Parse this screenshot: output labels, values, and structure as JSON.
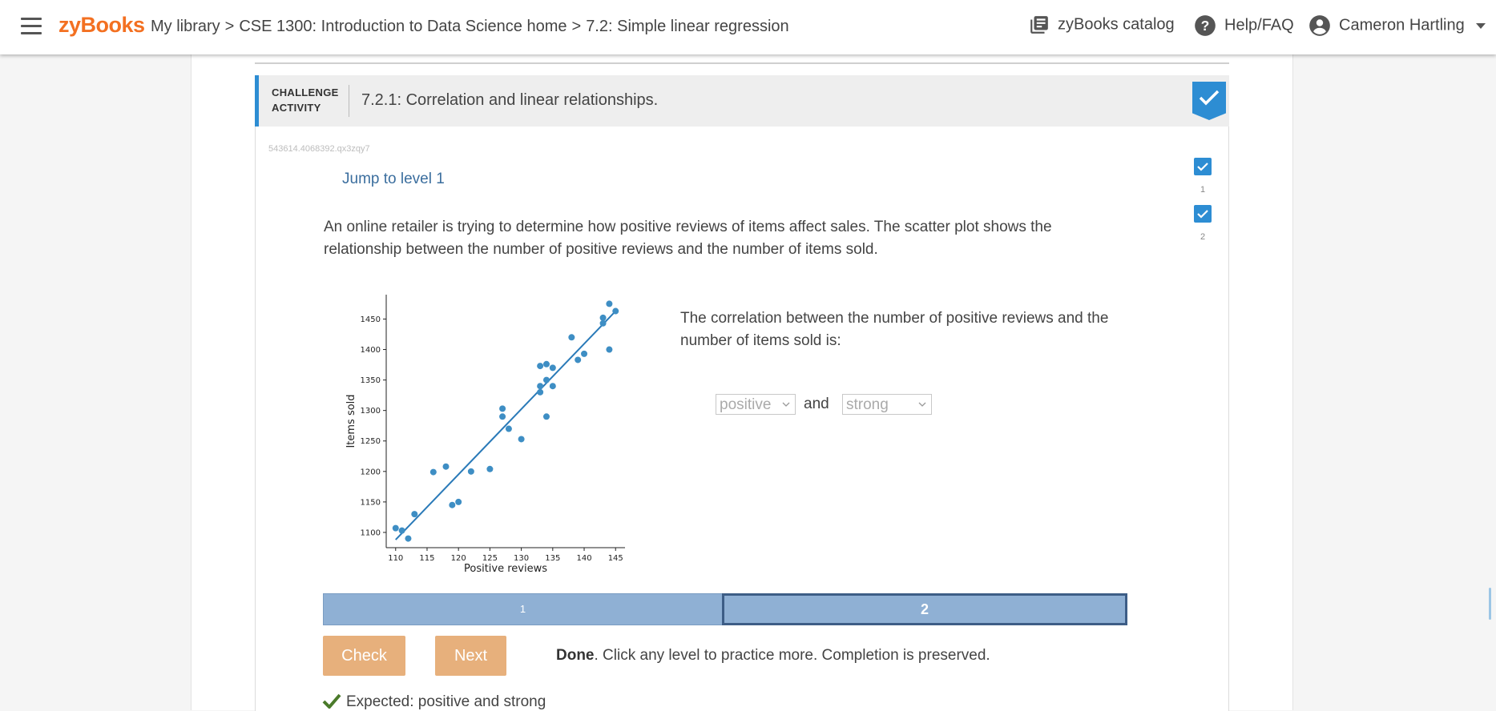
{
  "header": {
    "logo": "zyBooks",
    "breadcrumbs": [
      {
        "label": "My library"
      },
      {
        "label": "CSE 1300: Introduction to Data Science home"
      },
      {
        "label": "7.2: Simple linear regression"
      }
    ],
    "separator": ">",
    "catalog_label": "zyBooks catalog",
    "help_label": "Help/FAQ",
    "user_name": "Cameron Hartling"
  },
  "activity": {
    "type_line1": "CHALLENGE",
    "type_line2": "ACTIVITY",
    "title": "7.2.1: Correlation and linear relationships.",
    "id": "543614.4068392.qx3zqy7",
    "jump_label": "Jump to level 1",
    "levels": [
      {
        "number": "1",
        "completed": true
      },
      {
        "number": "2",
        "completed": true
      }
    ],
    "prompt": "An online retailer is trying to determine how positive reviews of items affect sales. The scatter plot shows the relationship between the number of positive reviews and the number of items sold.",
    "question": "The correlation between the number of positive reviews and the number of items sold is:",
    "select1_value": "positive",
    "and_label": "and",
    "select2_value": "strong",
    "level_bar": [
      {
        "label": "1"
      },
      {
        "label": "2",
        "active": true
      }
    ],
    "check_label": "Check",
    "next_label": "Next",
    "done_bold": "Done",
    "done_text": ". Click any level to practice more. Completion is preserved.",
    "expected": "Expected: positive and strong"
  },
  "colors": {
    "accent": "#2d8dd3",
    "logo": "#f37021",
    "button": "#e7b07c",
    "level_bar": "#8fb0d4",
    "check": "#4a7a2a"
  },
  "chart_data": {
    "type": "scatter",
    "xlabel": "Positive reviews",
    "ylabel": "Items sold",
    "xlim": [
      108.5,
      146.5
    ],
    "ylim": [
      1075,
      1490
    ],
    "xticks": [
      110,
      115,
      120,
      125,
      130,
      135,
      140,
      145
    ],
    "yticks": [
      1100,
      1150,
      1200,
      1250,
      1300,
      1350,
      1400,
      1450
    ],
    "points": [
      [
        110,
        1107
      ],
      [
        111,
        1103
      ],
      [
        112,
        1090
      ],
      [
        113,
        1130
      ],
      [
        116,
        1199
      ],
      [
        118,
        1208
      ],
      [
        119,
        1145
      ],
      [
        120,
        1150
      ],
      [
        122,
        1200
      ],
      [
        125,
        1204
      ],
      [
        127,
        1303
      ],
      [
        127,
        1290
      ],
      [
        128,
        1270
      ],
      [
        130,
        1253
      ],
      [
        133,
        1373
      ],
      [
        133,
        1340
      ],
      [
        133,
        1330
      ],
      [
        134,
        1376
      ],
      [
        134,
        1350
      ],
      [
        134,
        1290
      ],
      [
        135,
        1370
      ],
      [
        135,
        1340
      ],
      [
        138,
        1420
      ],
      [
        139,
        1383
      ],
      [
        140,
        1393
      ],
      [
        143,
        1452
      ],
      [
        143,
        1443
      ],
      [
        144,
        1475
      ],
      [
        144,
        1400
      ],
      [
        145,
        1463
      ]
    ],
    "fit_line": {
      "x": [
        110,
        145
      ],
      "y": [
        1088,
        1463
      ]
    },
    "point_color": "#3e8ec4",
    "line_color": "#2a7ab8"
  }
}
